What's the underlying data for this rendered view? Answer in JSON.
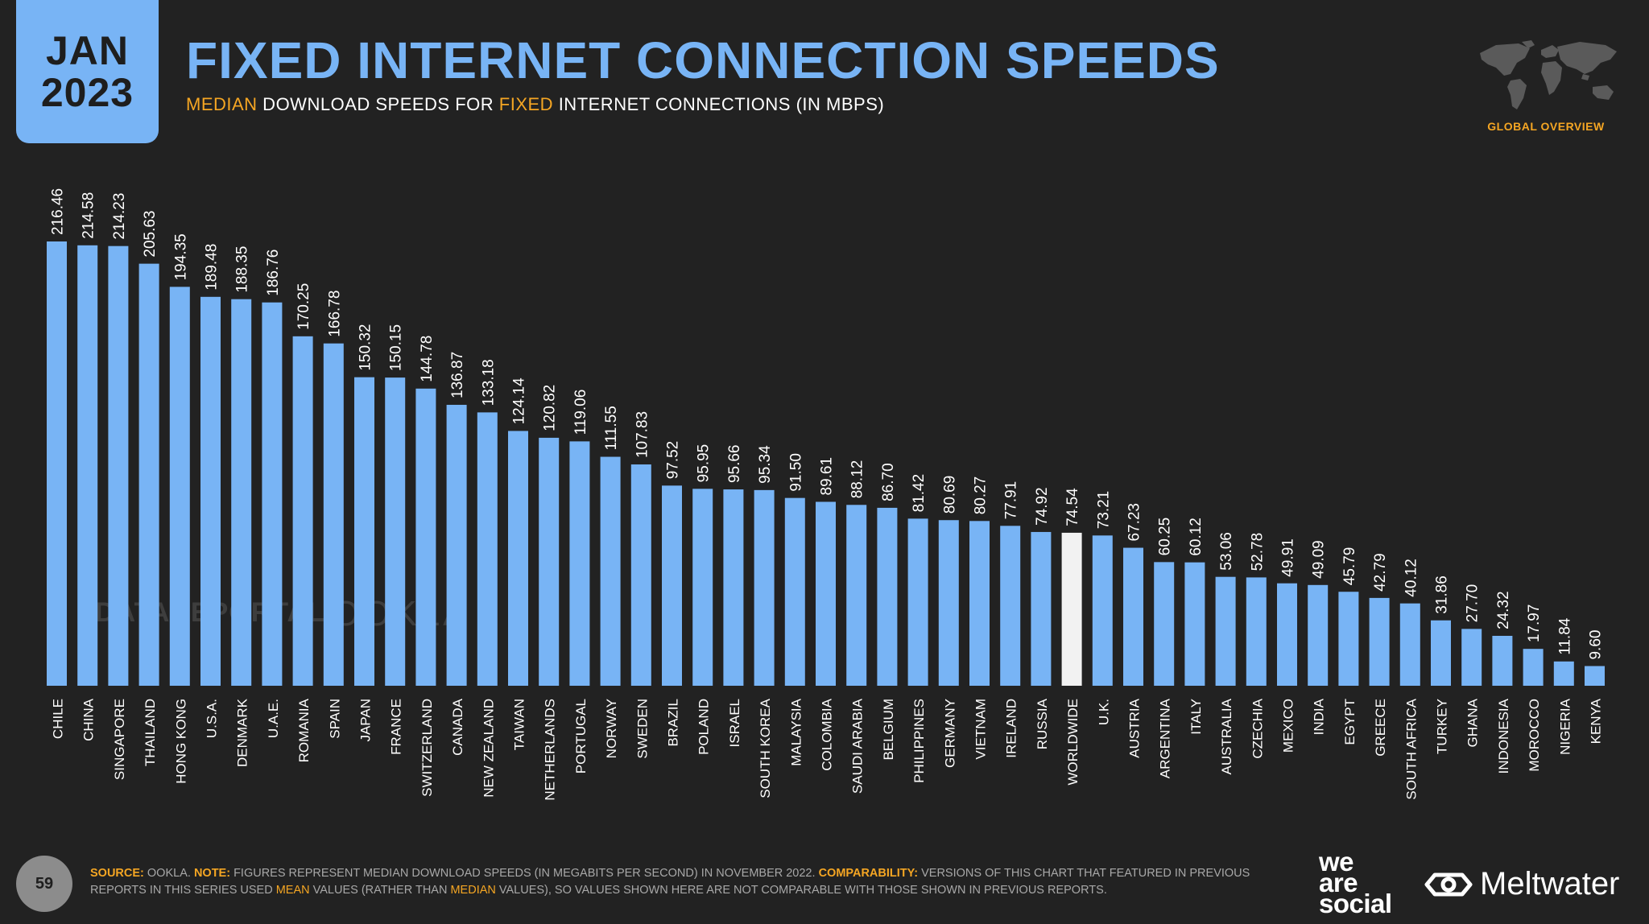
{
  "header": {
    "badge_month": "JAN",
    "badge_year": "2023",
    "title": "FIXED INTERNET CONNECTION SPEEDS",
    "subtitle": {
      "w1": "MEDIAN",
      "w2": " DOWNLOAD SPEEDS FOR ",
      "w3": "FIXED",
      "w4": " INTERNET CONNECTIONS (IN MBPS)"
    },
    "corner_label": "GLOBAL OVERVIEW"
  },
  "colors": {
    "background": "#222222",
    "bar": "#78b4f5",
    "highlight_bar": "#f2f2f2",
    "accent": "#f5a623"
  },
  "watermarks": {
    "datareportal": "DATAREPORTAL",
    "ookla": "OOKLA"
  },
  "chart_data": {
    "type": "bar",
    "title": "FIXED INTERNET CONNECTION SPEEDS",
    "subtitle": "MEDIAN DOWNLOAD SPEEDS FOR FIXED INTERNET CONNECTIONS (IN MBPS)",
    "highlight": "WORLDWIDE",
    "categories": [
      "CHILE",
      "CHINA",
      "SINGAPORE",
      "THAILAND",
      "HONG KONG",
      "U.S.A.",
      "DENMARK",
      "U.A.E.",
      "ROMANIA",
      "SPAIN",
      "JAPAN",
      "FRANCE",
      "SWITZERLAND",
      "CANADA",
      "NEW ZEALAND",
      "TAIWAN",
      "NETHERLANDS",
      "PORTUGAL",
      "NORWAY",
      "SWEDEN",
      "BRAZIL",
      "POLAND",
      "ISRAEL",
      "SOUTH KOREA",
      "MALAYSIA",
      "COLOMBIA",
      "SAUDI ARABIA",
      "BELGIUM",
      "PHILIPPINES",
      "GERMANY",
      "VIETNAM",
      "IRELAND",
      "RUSSIA",
      "WORLDWIDE",
      "U.K.",
      "AUSTRIA",
      "ARGENTINA",
      "ITALY",
      "AUSTRALIA",
      "CZECHIA",
      "MEXICO",
      "INDIA",
      "EGYPT",
      "GREECE",
      "SOUTH AFRICA",
      "TURKEY",
      "GHANA",
      "INDONESIA",
      "MOROCCO",
      "NIGERIA",
      "KENYA"
    ],
    "values": [
      216.46,
      214.58,
      214.23,
      205.63,
      194.35,
      189.48,
      188.35,
      186.76,
      170.25,
      166.78,
      150.32,
      150.15,
      144.78,
      136.87,
      133.18,
      124.14,
      120.82,
      119.06,
      111.55,
      107.83,
      97.52,
      95.95,
      95.66,
      95.34,
      91.5,
      89.61,
      88.12,
      86.7,
      81.42,
      80.69,
      80.27,
      77.91,
      74.92,
      74.54,
      73.21,
      67.23,
      60.25,
      60.12,
      53.06,
      52.78,
      49.91,
      49.09,
      45.79,
      42.79,
      40.12,
      31.86,
      27.7,
      24.32,
      17.97,
      11.84,
      9.6
    ],
    "value_labels": [
      "216.46",
      "214.58",
      "214.23",
      "205.63",
      "194.35",
      "189.48",
      "188.35",
      "186.76",
      "170.25",
      "166.78",
      "150.32",
      "150.15",
      "144.78",
      "136.87",
      "133.18",
      "124.14",
      "120.82",
      "119.06",
      "111.55",
      "107.83",
      "97.52",
      "95.95",
      "95.66",
      "95.34",
      "91.50",
      "89.61",
      "88.12",
      "86.70",
      "81.42",
      "80.69",
      "80.27",
      "77.91",
      "74.92",
      "74.54",
      "73.21",
      "67.23",
      "60.25",
      "60.12",
      "53.06",
      "52.78",
      "49.91",
      "49.09",
      "45.79",
      "42.79",
      "40.12",
      "31.86",
      "27.70",
      "24.32",
      "17.97",
      "11.84",
      "9.60"
    ],
    "ylim": [
      0,
      216.46
    ],
    "grid": false,
    "legend": "none"
  },
  "footer": {
    "page_number": "59",
    "source_label": "SOURCE:",
    "source_text": " OOKLA. ",
    "note_label": "NOTE:",
    "note_text": " FIGURES REPRESENT MEDIAN DOWNLOAD SPEEDS (IN MEGABITS PER SECOND) IN NOVEMBER 2022. ",
    "comparability_label": "COMPARABILITY:",
    "comp_text_1": " VERSIONS OF THIS CHART THAT FEATURED IN PREVIOUS REPORTS IN THIS SERIES USED ",
    "comp_hl_1": "MEAN",
    "comp_text_2": " VALUES (RATHER THAN ",
    "comp_hl_2": "MEDIAN",
    "comp_text_3": " VALUES), SO VALUES SHOWN HERE ARE NOT COMPARABLE WITH THOSE SHOWN IN PREVIOUS REPORTS.",
    "logo_we": "we",
    "logo_are": "are",
    "logo_social": "social",
    "logo_meltwater": "Meltwater"
  }
}
